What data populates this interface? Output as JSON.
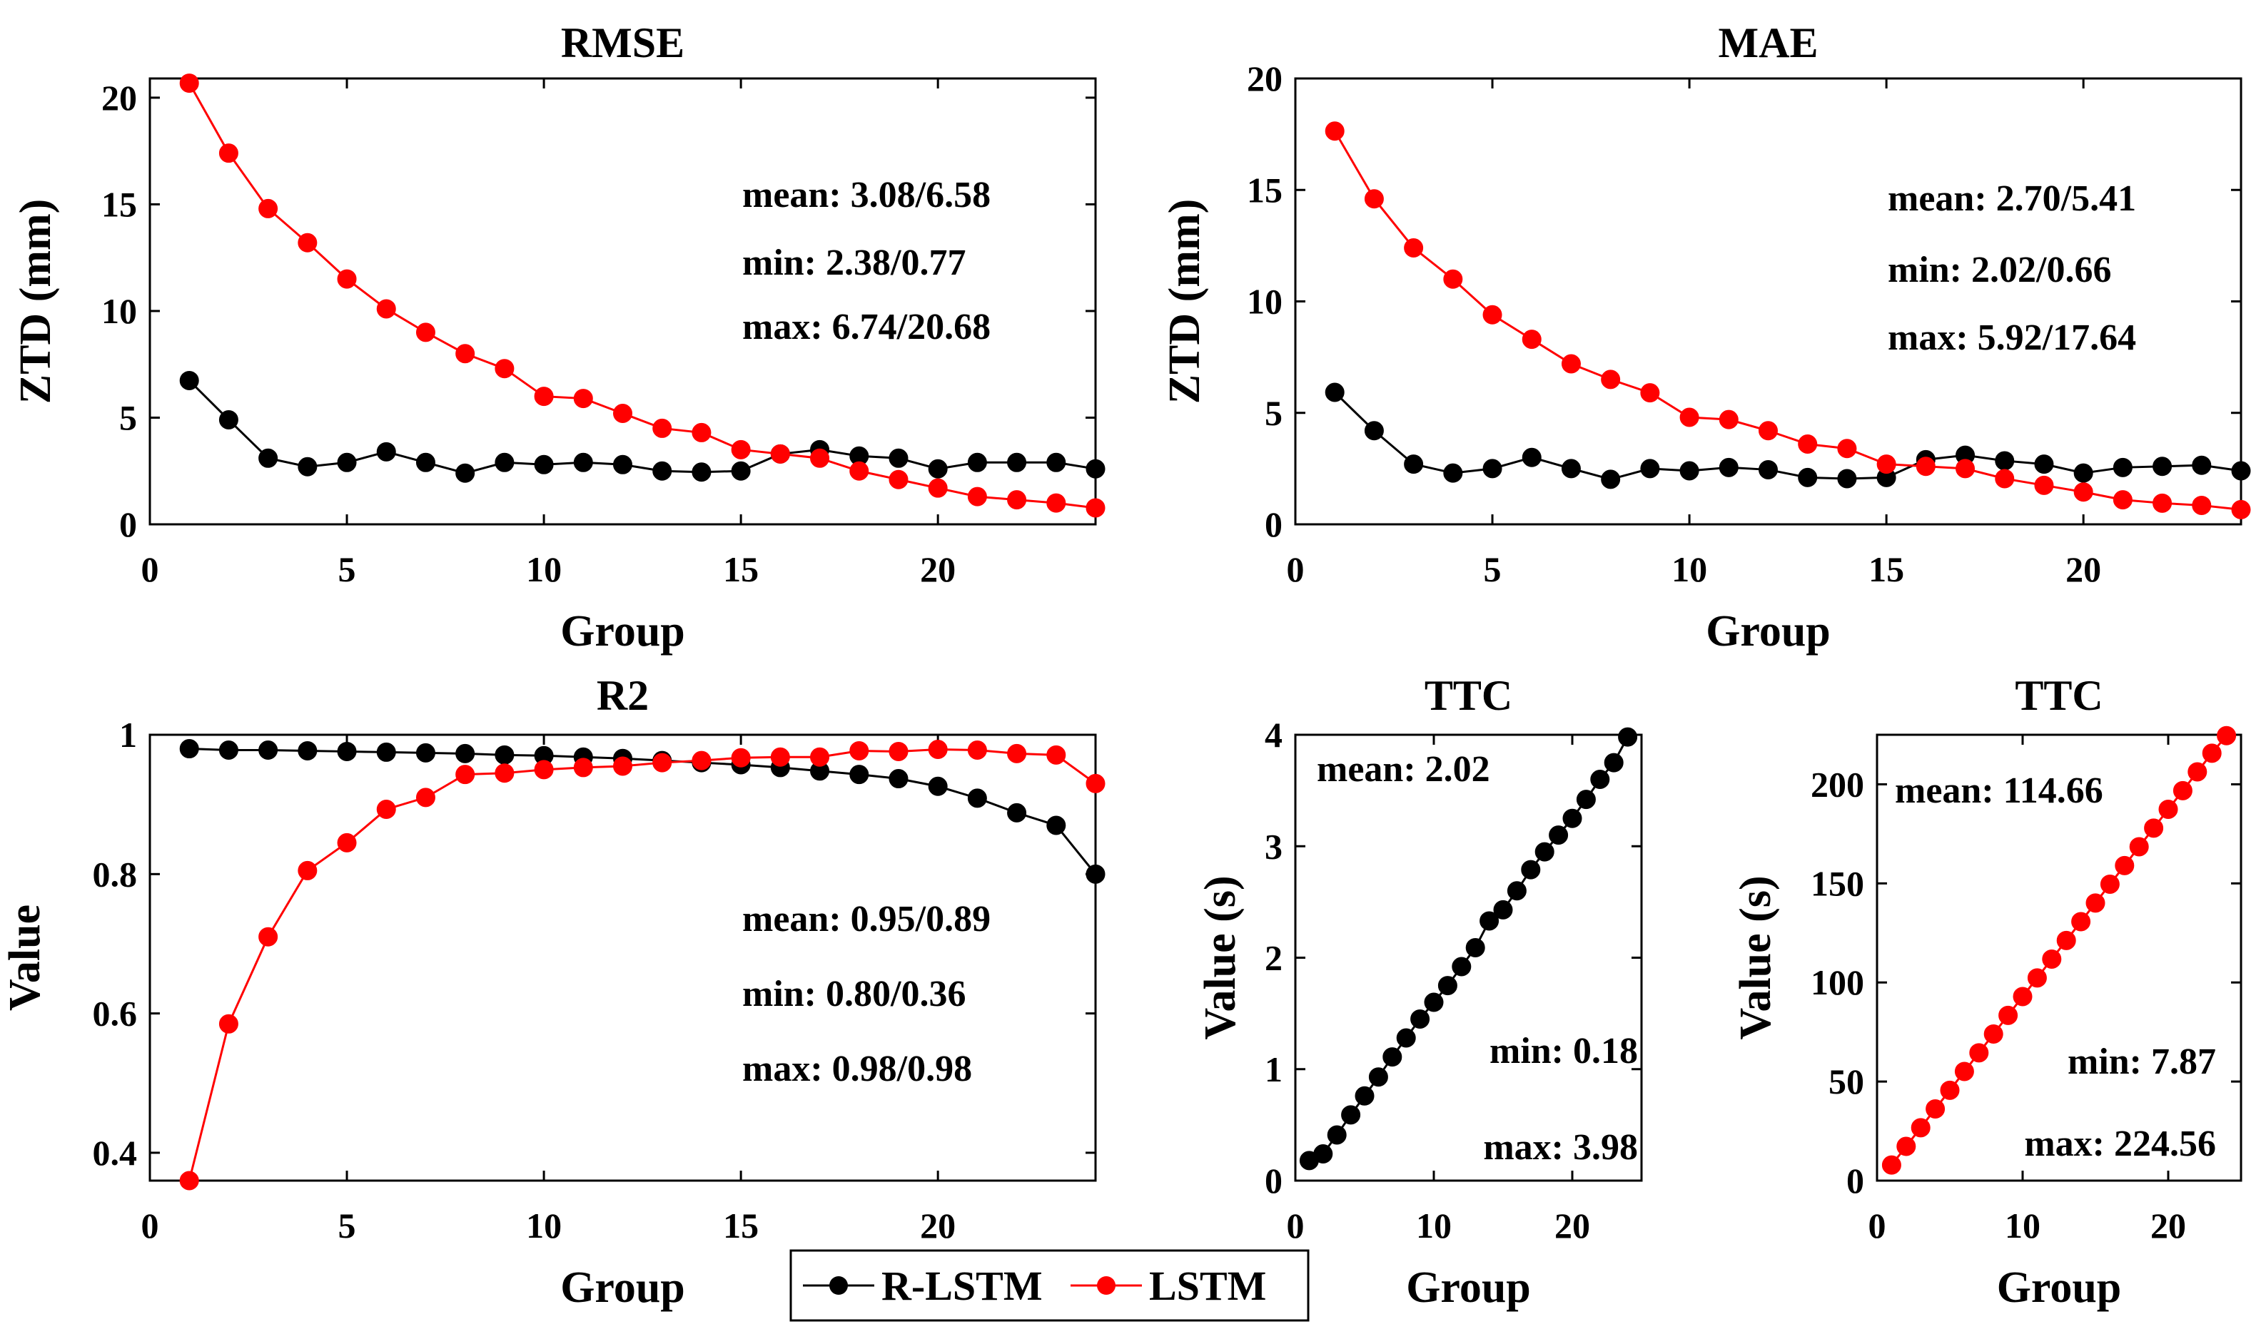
{
  "colors": {
    "r_lstm": "#000000",
    "lstm": "#ff0000"
  },
  "legend": {
    "items": [
      {
        "key": "r_lstm",
        "label": "R-LSTM"
      },
      {
        "key": "lstm",
        "label": "LSTM"
      }
    ]
  },
  "chart_data": [
    {
      "id": "rmse",
      "type": "line",
      "title": "RMSE",
      "xlabel": "Group",
      "ylabel": "ZTD (mm)",
      "xlim": [
        0,
        24
      ],
      "ylim": [
        0,
        20.9
      ],
      "xticks": [
        0,
        5,
        10,
        15,
        20
      ],
      "yticks": [
        0,
        5,
        10,
        15,
        20
      ],
      "x": [
        1,
        2,
        3,
        4,
        5,
        6,
        7,
        8,
        9,
        10,
        11,
        12,
        13,
        14,
        15,
        16,
        17,
        18,
        19,
        20,
        21,
        22,
        23,
        24
      ],
      "series": [
        {
          "key": "r_lstm",
          "name": "R-LSTM",
          "values": [
            6.74,
            4.9,
            3.1,
            2.7,
            2.9,
            3.4,
            2.9,
            2.4,
            2.9,
            2.8,
            2.9,
            2.8,
            2.5,
            2.45,
            2.5,
            3.3,
            3.5,
            3.2,
            3.1,
            2.6,
            2.9,
            2.9,
            2.9,
            2.6
          ]
        },
        {
          "key": "lstm",
          "name": "LSTM",
          "values": [
            20.68,
            17.4,
            14.8,
            13.2,
            11.5,
            10.1,
            9.0,
            8.0,
            7.3,
            6.0,
            5.9,
            5.2,
            4.5,
            4.3,
            3.5,
            3.3,
            3.1,
            2.5,
            2.1,
            1.7,
            1.3,
            1.15,
            1.0,
            0.77
          ]
        }
      ],
      "annotations": [
        "mean: 3.08/6.58",
        "min: 2.38/0.77",
        "max: 6.74/20.68"
      ]
    },
    {
      "id": "mae",
      "type": "line",
      "title": "MAE",
      "xlabel": "Group",
      "ylabel": "ZTD (mm)",
      "xlim": [
        0,
        24
      ],
      "ylim": [
        0,
        20
      ],
      "xticks": [
        0,
        5,
        10,
        15,
        20
      ],
      "yticks": [
        0,
        5,
        10,
        15,
        20
      ],
      "x": [
        1,
        2,
        3,
        4,
        5,
        6,
        7,
        8,
        9,
        10,
        11,
        12,
        13,
        14,
        15,
        16,
        17,
        18,
        19,
        20,
        21,
        22,
        23,
        24
      ],
      "series": [
        {
          "key": "r_lstm",
          "name": "R-LSTM",
          "values": [
            5.92,
            4.2,
            2.7,
            2.3,
            2.5,
            3.0,
            2.5,
            2.02,
            2.5,
            2.4,
            2.55,
            2.45,
            2.1,
            2.05,
            2.1,
            2.9,
            3.1,
            2.85,
            2.7,
            2.3,
            2.55,
            2.6,
            2.65,
            2.4
          ]
        },
        {
          "key": "lstm",
          "name": "LSTM",
          "values": [
            17.64,
            14.6,
            12.4,
            11.0,
            9.4,
            8.3,
            7.2,
            6.5,
            5.9,
            4.8,
            4.7,
            4.2,
            3.6,
            3.4,
            2.7,
            2.6,
            2.5,
            2.05,
            1.75,
            1.45,
            1.1,
            0.95,
            0.85,
            0.66
          ]
        }
      ],
      "annotations": [
        "mean: 2.70/5.41",
        "min: 2.02/0.66",
        "max: 5.92/17.64"
      ]
    },
    {
      "id": "r2",
      "type": "line",
      "title": "R2",
      "xlabel": "Group",
      "ylabel": "Value",
      "xlim": [
        0,
        24
      ],
      "ylim": [
        0.36,
        1.0
      ],
      "xticks": [
        0,
        5,
        10,
        15,
        20
      ],
      "yticks": [
        0.4,
        0.6,
        0.8,
        1
      ],
      "x": [
        1,
        2,
        3,
        4,
        5,
        6,
        7,
        8,
        9,
        10,
        11,
        12,
        13,
        14,
        15,
        16,
        17,
        18,
        19,
        20,
        21,
        22,
        23,
        24
      ],
      "series": [
        {
          "key": "r_lstm",
          "name": "R-LSTM",
          "values": [
            0.98,
            0.978,
            0.978,
            0.977,
            0.976,
            0.975,
            0.974,
            0.973,
            0.971,
            0.97,
            0.968,
            0.966,
            0.963,
            0.96,
            0.957,
            0.953,
            0.948,
            0.943,
            0.937,
            0.926,
            0.909,
            0.888,
            0.87,
            0.8
          ]
        },
        {
          "key": "lstm",
          "name": "LSTM",
          "values": [
            0.36,
            0.585,
            0.71,
            0.805,
            0.845,
            0.893,
            0.91,
            0.943,
            0.945,
            0.95,
            0.953,
            0.955,
            0.96,
            0.963,
            0.967,
            0.968,
            0.968,
            0.977,
            0.976,
            0.979,
            0.978,
            0.973,
            0.971,
            0.93
          ]
        }
      ],
      "annotations": [
        "mean: 0.95/0.89",
        "min: 0.80/0.36",
        "max: 0.98/0.98"
      ]
    },
    {
      "id": "ttc1",
      "type": "line",
      "title": "TTC",
      "xlabel": "Group",
      "ylabel": "Value (s)",
      "xlim": [
        0,
        25
      ],
      "ylim": [
        0,
        4
      ],
      "xticks": [
        0,
        10,
        20
      ],
      "yticks": [
        0,
        1,
        2,
        3,
        4
      ],
      "x": [
        1,
        2,
        3,
        4,
        5,
        6,
        7,
        8,
        9,
        10,
        11,
        12,
        13,
        14,
        15,
        16,
        17,
        18,
        19,
        20,
        21,
        22,
        23,
        24
      ],
      "series": [
        {
          "key": "r_lstm",
          "name": "R-LSTM",
          "values": [
            0.18,
            0.24,
            0.41,
            0.59,
            0.76,
            0.93,
            1.11,
            1.28,
            1.45,
            1.6,
            1.75,
            1.92,
            2.09,
            2.33,
            2.43,
            2.6,
            2.79,
            2.95,
            3.1,
            3.25,
            3.42,
            3.6,
            3.75,
            3.98
          ]
        }
      ],
      "annotations": [
        "mean: 2.02",
        "min: 0.18",
        "max: 3.98"
      ]
    },
    {
      "id": "ttc2",
      "type": "line",
      "title": "TTC",
      "xlabel": "Group",
      "ylabel": "Value (s)",
      "xlim": [
        0,
        25
      ],
      "ylim": [
        0,
        225
      ],
      "xticks": [
        0,
        10,
        20
      ],
      "yticks": [
        0,
        50,
        100,
        150,
        200
      ],
      "x": [
        1,
        2,
        3,
        4,
        5,
        6,
        7,
        8,
        9,
        10,
        11,
        12,
        13,
        14,
        15,
        16,
        17,
        18,
        19,
        20,
        21,
        22,
        23,
        24
      ],
      "series": [
        {
          "key": "lstm",
          "name": "LSTM",
          "values": [
            7.87,
            17.3,
            26.7,
            36.2,
            45.6,
            55.1,
            64.5,
            74.0,
            83.4,
            92.9,
            102.3,
            111.8,
            121.2,
            130.7,
            140.1,
            149.6,
            159.0,
            168.5,
            177.9,
            187.4,
            196.8,
            206.3,
            215.7,
            224.56
          ]
        }
      ],
      "annotations": [
        "mean: 114.66",
        "min: 7.87",
        "max: 224.56"
      ]
    }
  ]
}
